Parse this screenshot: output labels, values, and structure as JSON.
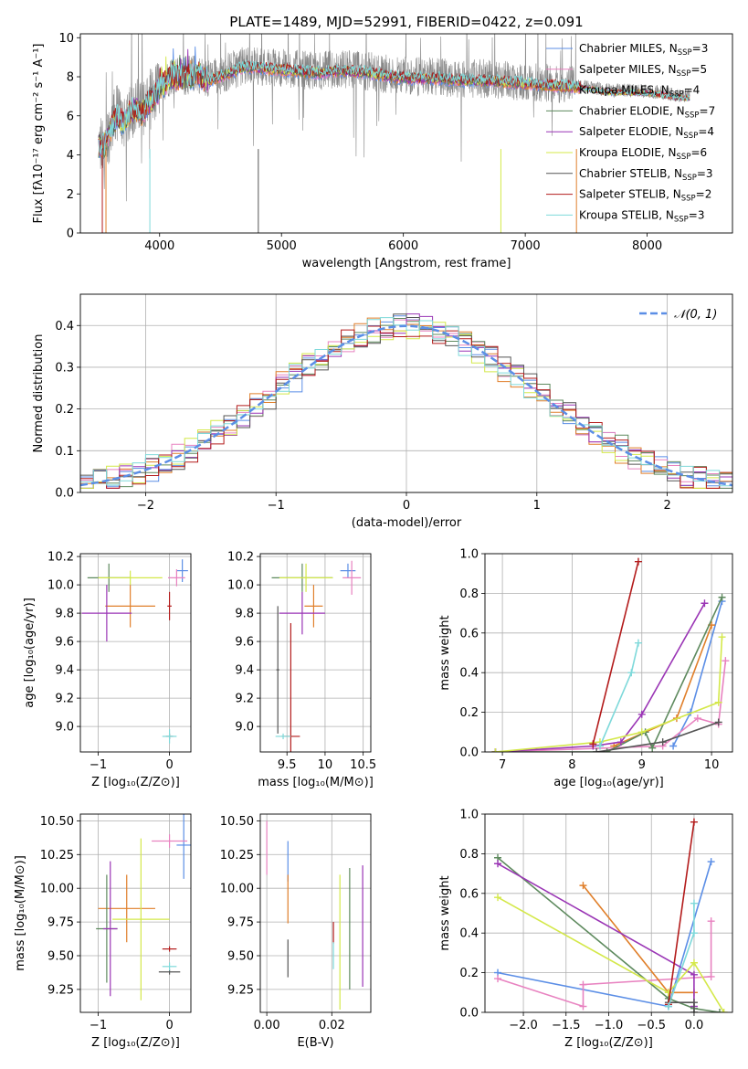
{
  "title": "PLATE=1489, MJD=52991, FIBERID=0422, z=0.091",
  "models": [
    {
      "name": "Chabrier MILES",
      "nssp": "3",
      "color": "#5b8ee6"
    },
    {
      "name": "Salpeter MILES",
      "nssp": "5",
      "color": "#e882c0"
    },
    {
      "name": "Kroupa MILES",
      "nssp": "4",
      "color": "#e07f2a"
    },
    {
      "name": "Chabrier ELODIE",
      "nssp": "7",
      "color": "#5e8a5e"
    },
    {
      "name": "Salpeter ELODIE",
      "nssp": "4",
      "color": "#9a35b5"
    },
    {
      "name": "Kroupa ELODIE",
      "nssp": "6",
      "color": "#d4e84a"
    },
    {
      "name": "Chabrier STELIB",
      "nssp": "3",
      "color": "#555555"
    },
    {
      "name": "Salpeter STELIB",
      "nssp": "2",
      "color": "#b31b1b"
    },
    {
      "name": "Kroupa STELIB",
      "nssp": "3",
      "color": "#7ed9da"
    }
  ],
  "chart_data": [
    {
      "id": "spectrum",
      "type": "line",
      "xlabel": "wavelength [Angstrom, rest frame]",
      "ylabel": "Flux [fλ10⁻¹⁷ erg cm⁻² s⁻¹ A⁻¹]",
      "xlim": [
        3350,
        8700
      ],
      "ylim": [
        0,
        10.2
      ],
      "xticks": [
        4000,
        5000,
        6000,
        7000,
        8000
      ],
      "yticks": [
        0,
        2,
        4,
        6,
        8,
        10
      ],
      "grid": false,
      "legend": "right",
      "series": [
        {
          "name": "data",
          "color": "#888888",
          "x": [
            3500,
            3550,
            3600,
            3650,
            3700,
            3750,
            3800,
            3850,
            3900,
            3950,
            4000,
            4100,
            4200,
            4300,
            4400,
            4500,
            4700,
            4900,
            5100,
            5300,
            5500,
            5700,
            5900,
            6100,
            6300,
            6500,
            6700,
            6900,
            7100,
            7300,
            7500,
            7700,
            7900,
            8100,
            8300
          ],
          "y": [
            4.5,
            4.6,
            5.4,
            6.2,
            5.8,
            6.3,
            6.5,
            6.2,
            6.7,
            7.0,
            7.5,
            8.1,
            8.0,
            8.2,
            7.9,
            8.1,
            8.6,
            8.5,
            8.4,
            8.3,
            8.4,
            8.3,
            8.1,
            8.0,
            8.0,
            7.9,
            7.9,
            7.8,
            7.7,
            7.6,
            7.5,
            7.3,
            7.3,
            7.2,
            7.0
          ]
        },
        {
          "name": "model",
          "color": "#7ed9da",
          "x": [
            3500,
            3550,
            3600,
            3650,
            3700,
            3750,
            3800,
            3850,
            3900,
            3950,
            4000,
            4100,
            4200,
            4300,
            4400,
            4500,
            4700,
            4900,
            5100,
            5300,
            5500,
            5700,
            5900,
            6100,
            6300,
            6500,
            6700,
            6900,
            7100,
            7300,
            7500,
            7700,
            7900,
            8100,
            8300
          ],
          "y": [
            4.4,
            4.5,
            5.3,
            6.0,
            5.6,
            6.1,
            6.4,
            6.1,
            6.6,
            6.9,
            7.4,
            8.0,
            7.9,
            8.1,
            7.8,
            8.0,
            8.5,
            8.4,
            8.3,
            8.2,
            8.3,
            8.2,
            8.0,
            7.9,
            7.9,
            7.8,
            7.8,
            7.7,
            7.6,
            7.5,
            7.4,
            7.2,
            7.2,
            7.1,
            6.9
          ]
        }
      ]
    },
    {
      "id": "residuals",
      "type": "bar",
      "xlabel": "(data-model)/error",
      "ylabel": "Normed distribution",
      "xlim": [
        -2.5,
        2.5
      ],
      "ylim": [
        0,
        0.475
      ],
      "xticks": [
        -2,
        -1,
        0,
        1,
        2
      ],
      "yticks": [
        0.0,
        0.1,
        0.2,
        0.3,
        0.4
      ],
      "grid": true,
      "legend": "top-right",
      "reference": {
        "name": "𝒩(0, 1)",
        "mean": 0,
        "sigma": 1,
        "color": "#5b8ee6"
      }
    },
    {
      "id": "age-vs-z",
      "type": "scatter",
      "xlabel": "Z [log₁₀(Z/Z⊙)]",
      "ylabel": "age  [log₁₀(age/yr)]",
      "xlim": [
        -1.25,
        0.3
      ],
      "ylim": [
        8.82,
        10.22
      ],
      "xticks": [
        -1,
        0
      ],
      "yticks": [
        9.0,
        9.2,
        9.4,
        9.6,
        9.8,
        10.0,
        10.2
      ],
      "grid": true,
      "points": [
        {
          "model": 0,
          "x": 0.18,
          "y": 10.1,
          "xerr": 0.08,
          "yerr": 0.08
        },
        {
          "model": 1,
          "x": 0.1,
          "y": 10.05,
          "xerr": 0.12,
          "yerr": 0.06
        },
        {
          "model": 2,
          "x": -0.55,
          "y": 9.85,
          "xerr": 0.35,
          "yerr": 0.15
        },
        {
          "model": 3,
          "x": -0.85,
          "y": 10.05,
          "xerr": 0.3,
          "yerr": 0.1
        },
        {
          "model": 4,
          "x": -0.88,
          "y": 9.8,
          "xerr": 0.35,
          "yerr": 0.2
        },
        {
          "model": 5,
          "x": -0.55,
          "y": 10.05,
          "xerr": 0.45,
          "yerr": 0.05
        },
        {
          "model": 6,
          "x": 0.0,
          "y": 8.93,
          "xerr": 0.05,
          "yerr": 0.02
        },
        {
          "model": 7,
          "x": 0.0,
          "y": 9.85,
          "xerr": 0.03,
          "yerr": 0.1
        },
        {
          "model": 8,
          "x": 0.0,
          "y": 8.93,
          "xerr": 0.1,
          "yerr": 0.05
        }
      ]
    },
    {
      "id": "age-vs-mass",
      "type": "scatter",
      "xlabel": "mass [log₁₀(M/M⊙)]",
      "ylabel": "",
      "xlim": [
        9.15,
        10.6
      ],
      "ylim": [
        8.82,
        10.22
      ],
      "xticks": [
        9.5,
        10.0,
        10.5
      ],
      "yticks": [
        9.0,
        9.2,
        9.4,
        9.6,
        9.8,
        10.0,
        10.2
      ],
      "grid": true,
      "points": [
        {
          "model": 0,
          "x": 10.3,
          "y": 10.1,
          "xerr": 0.1,
          "yerr": 0.05
        },
        {
          "model": 1,
          "x": 10.35,
          "y": 10.05,
          "xerr": 0.12,
          "yerr": 0.12
        },
        {
          "model": 2,
          "x": 9.85,
          "y": 9.85,
          "xerr": 0.12,
          "yerr": 0.15
        },
        {
          "model": 3,
          "x": 9.7,
          "y": 10.05,
          "xerr": 0.4,
          "yerr": 0.1
        },
        {
          "model": 4,
          "x": 9.7,
          "y": 9.8,
          "xerr": 0.3,
          "yerr": 0.15
        },
        {
          "model": 5,
          "x": 9.75,
          "y": 10.05,
          "xerr": 0.35,
          "yerr": 0.1
        },
        {
          "model": 6,
          "x": 9.38,
          "y": 9.4,
          "xerr": 0.02,
          "yerr": 0.45
        },
        {
          "model": 7,
          "x": 9.55,
          "y": 8.93,
          "xerr": 0.12,
          "yerr": 0.8
        },
        {
          "model": 8,
          "x": 9.45,
          "y": 8.93,
          "xerr": 0.1,
          "yerr": 0.02
        }
      ]
    },
    {
      "id": "weight-vs-age",
      "type": "line",
      "xlabel": "age  [log₁₀(age/yr)]",
      "ylabel": "mass weight",
      "xlim": [
        6.75,
        10.3
      ],
      "ylim": [
        0,
        1.0
      ],
      "xticks": [
        7,
        8,
        9,
        10
      ],
      "yticks": [
        0.0,
        0.2,
        0.4,
        0.6,
        0.8,
        1.0
      ],
      "grid": true,
      "series": [
        {
          "model": 0,
          "x": [
            9.45,
            9.7,
            10.15
          ],
          "y": [
            0.03,
            0.2,
            0.76
          ]
        },
        {
          "model": 1,
          "x": [
            6.9,
            9.3,
            9.8,
            10.1,
            10.2
          ],
          "y": [
            0.0,
            0.03,
            0.17,
            0.14,
            0.46
          ]
        },
        {
          "model": 2,
          "x": [
            8.6,
            9.5,
            10.0
          ],
          "y": [
            0.03,
            0.17,
            0.64
          ]
        },
        {
          "model": 3,
          "x": [
            6.9,
            8.5,
            9.05,
            9.15,
            10.15
          ],
          "y": [
            0.0,
            0.0,
            0.1,
            0.02,
            0.78
          ]
        },
        {
          "model": 4,
          "x": [
            6.9,
            8.3,
            8.7,
            9.0,
            9.9
          ],
          "y": [
            0.0,
            0.03,
            0.05,
            0.19,
            0.75
          ]
        },
        {
          "model": 5,
          "x": [
            6.9,
            8.4,
            9.0,
            10.1,
            10.15
          ],
          "y": [
            0.0,
            0.05,
            0.1,
            0.25,
            0.58
          ]
        },
        {
          "model": 6,
          "x": [
            8.35,
            9.3,
            10.1
          ],
          "y": [
            0.0,
            0.05,
            0.15
          ]
        },
        {
          "model": 7,
          "x": [
            8.3,
            8.95
          ],
          "y": [
            0.04,
            0.96
          ]
        },
        {
          "model": 8,
          "x": [
            8.4,
            8.85,
            8.95
          ],
          "y": [
            0.03,
            0.4,
            0.55
          ]
        }
      ]
    },
    {
      "id": "mass-vs-z",
      "type": "scatter",
      "xlabel": "Z [log₁₀(Z/Z⊙)]",
      "ylabel": "mass [log₁₀(M/M⊙)]",
      "xlim": [
        -1.25,
        0.3
      ],
      "ylim": [
        9.08,
        10.55
      ],
      "xticks": [
        -1,
        0
      ],
      "yticks": [
        9.25,
        9.5,
        9.75,
        10.0,
        10.25,
        10.5
      ],
      "grid": true,
      "points": [
        {
          "model": 0,
          "x": 0.2,
          "y": 10.32,
          "xerr": 0.1,
          "yerr": 0.25
        },
        {
          "model": 1,
          "x": 0.0,
          "y": 10.35,
          "xerr": 0.25,
          "yerr": 0.05
        },
        {
          "model": 2,
          "x": -0.6,
          "y": 9.85,
          "xerr": 0.4,
          "yerr": 0.25
        },
        {
          "model": 3,
          "x": -0.88,
          "y": 9.7,
          "xerr": 0.15,
          "yerr": 0.4
        },
        {
          "model": 4,
          "x": -0.83,
          "y": 9.7,
          "xerr": 0.1,
          "yerr": 0.5
        },
        {
          "model": 5,
          "x": -0.4,
          "y": 9.77,
          "xerr": 0.4,
          "yerr": 0.6
        },
        {
          "model": 6,
          "x": 0.0,
          "y": 9.38,
          "xerr": 0.15,
          "yerr": 0.02
        },
        {
          "model": 7,
          "x": 0.0,
          "y": 9.55,
          "xerr": 0.1,
          "yerr": 0.02
        },
        {
          "model": 8,
          "x": 0.0,
          "y": 9.42,
          "xerr": 0.1,
          "yerr": 0.03
        }
      ]
    },
    {
      "id": "mass-vs-ebv",
      "type": "scatter",
      "xlabel": "E(B-V)",
      "ylabel": "",
      "xlim": [
        -0.002,
        0.032
      ],
      "ylim": [
        9.08,
        10.55
      ],
      "xticks": [
        0.0,
        0.02
      ],
      "yticks": [
        9.25,
        9.5,
        9.75,
        10.0,
        10.25,
        10.5
      ],
      "grid": true,
      "points": [
        {
          "model": 0,
          "x": 0.0065,
          "y": 10.2,
          "xerr": 0.0,
          "yerr": 0.15
        },
        {
          "model": 1,
          "x": 0.0,
          "y": 10.3,
          "xerr": 0.0,
          "yerr": 0.2
        },
        {
          "model": 2,
          "x": 0.0065,
          "y": 9.92,
          "xerr": 0.0,
          "yerr": 0.18
        },
        {
          "model": 3,
          "x": 0.0255,
          "y": 9.7,
          "xerr": 0.0,
          "yerr": 0.45
        },
        {
          "model": 4,
          "x": 0.0295,
          "y": 9.72,
          "xerr": 0.0,
          "yerr": 0.45
        },
        {
          "model": 5,
          "x": 0.0225,
          "y": 9.6,
          "xerr": 0.0,
          "yerr": 0.5
        },
        {
          "model": 6,
          "x": 0.0065,
          "y": 9.48,
          "xerr": 0.0,
          "yerr": 0.14
        },
        {
          "model": 7,
          "x": 0.0205,
          "y": 9.67,
          "xerr": 0.0,
          "yerr": 0.08
        },
        {
          "model": 8,
          "x": 0.0205,
          "y": 9.5,
          "xerr": 0.0,
          "yerr": 0.1
        }
      ]
    },
    {
      "id": "weight-vs-z",
      "type": "line",
      "xlabel": "Z [log₁₀(Z/Z⊙)]",
      "ylabel": "mass weight",
      "xlim": [
        -2.45,
        0.45
      ],
      "ylim": [
        0,
        1.0
      ],
      "xticks": [
        -2.0,
        -1.5,
        -1.0,
        -0.5,
        0.0
      ],
      "yticks": [
        0.0,
        0.2,
        0.4,
        0.6,
        0.8,
        1.0
      ],
      "grid": true,
      "series": [
        {
          "model": 0,
          "x": [
            -2.3,
            -0.3,
            0.2
          ],
          "y": [
            0.2,
            0.03,
            0.76
          ]
        },
        {
          "model": 1,
          "x": [
            -2.3,
            -1.3,
            -1.3,
            0.2,
            0.2
          ],
          "y": [
            0.17,
            0.03,
            0.14,
            0.18,
            0.46
          ]
        },
        {
          "model": 2,
          "x": [
            -1.3,
            -0.3,
            0.0
          ],
          "y": [
            0.64,
            0.1,
            0.1
          ]
        },
        {
          "model": 3,
          "x": [
            -2.3,
            -0.3,
            0.0,
            0.3
          ],
          "y": [
            0.78,
            0.07,
            0.02,
            0.0
          ]
        },
        {
          "model": 4,
          "x": [
            -2.3,
            0.0,
            0.0
          ],
          "y": [
            0.75,
            0.19,
            0.03
          ]
        },
        {
          "model": 5,
          "x": [
            -2.3,
            -0.3,
            0.0,
            0.35
          ],
          "y": [
            0.58,
            0.1,
            0.25,
            0.0
          ]
        },
        {
          "model": 6,
          "x": [
            -0.3,
            0.0,
            0.0
          ],
          "y": [
            0.05,
            0.05,
            0.0
          ]
        },
        {
          "model": 7,
          "x": [
            -0.3,
            0.0
          ],
          "y": [
            0.04,
            0.96
          ]
        },
        {
          "model": 8,
          "x": [
            -0.3,
            0.0,
            0.0
          ],
          "y": [
            0.03,
            0.4,
            0.55
          ]
        }
      ]
    }
  ]
}
